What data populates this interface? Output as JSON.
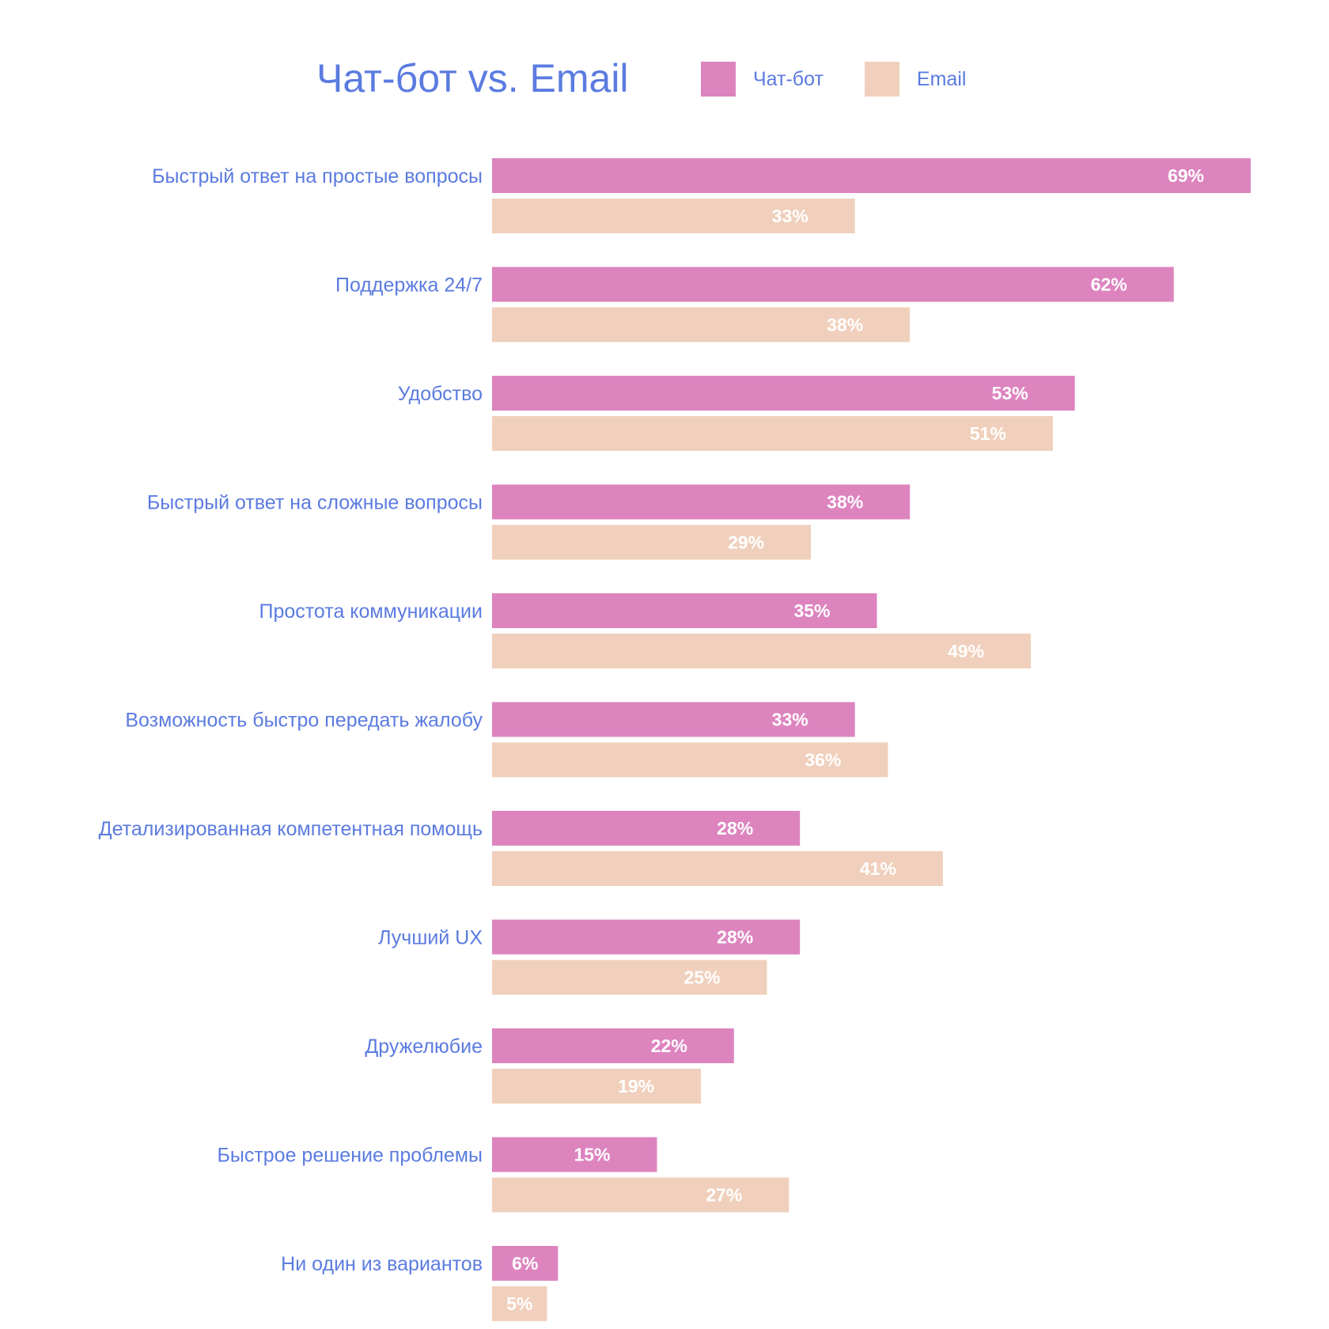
{
  "chart_data": {
    "type": "bar",
    "orientation": "horizontal",
    "title": "Чат-бот vs. Email",
    "categories": [
      "Быстрый ответ на простые вопросы",
      "Поддержка 24/7",
      "Удобство",
      "Быстрый ответ на сложные вопросы",
      "Простота коммуникации",
      "Возможность быстро передать жалобу",
      "Детализированная компетентная помощь",
      "Лучший UX",
      "Дружелюбие",
      "Быстрое решение проблемы",
      "Ни один из вариантов"
    ],
    "series": [
      {
        "name": "Чат-бот",
        "color": "#dd84bf",
        "values": [
          69,
          62,
          53,
          38,
          35,
          33,
          28,
          28,
          22,
          15,
          6
        ],
        "labels": [
          "69%",
          "62%",
          "53%",
          "38%",
          "35%",
          "33%",
          "28%",
          "28%",
          "22%",
          "15%",
          "6%"
        ]
      },
      {
        "name": "Email",
        "color": "#f0d0bc",
        "values": [
          33,
          38,
          51,
          29,
          49,
          36,
          41,
          25,
          19,
          27,
          5
        ],
        "labels": [
          "33%",
          "38%",
          "51%",
          "29%",
          "49%",
          "36%",
          "41%",
          "25%",
          "19%",
          "27%",
          "5%"
        ]
      }
    ],
    "value_unit": "%",
    "legend_position": "top",
    "grid": false,
    "axes_visible": false
  },
  "colors": {
    "text": "#5b7be0",
    "background": "#ffffff",
    "value_label": "#ffffff"
  }
}
